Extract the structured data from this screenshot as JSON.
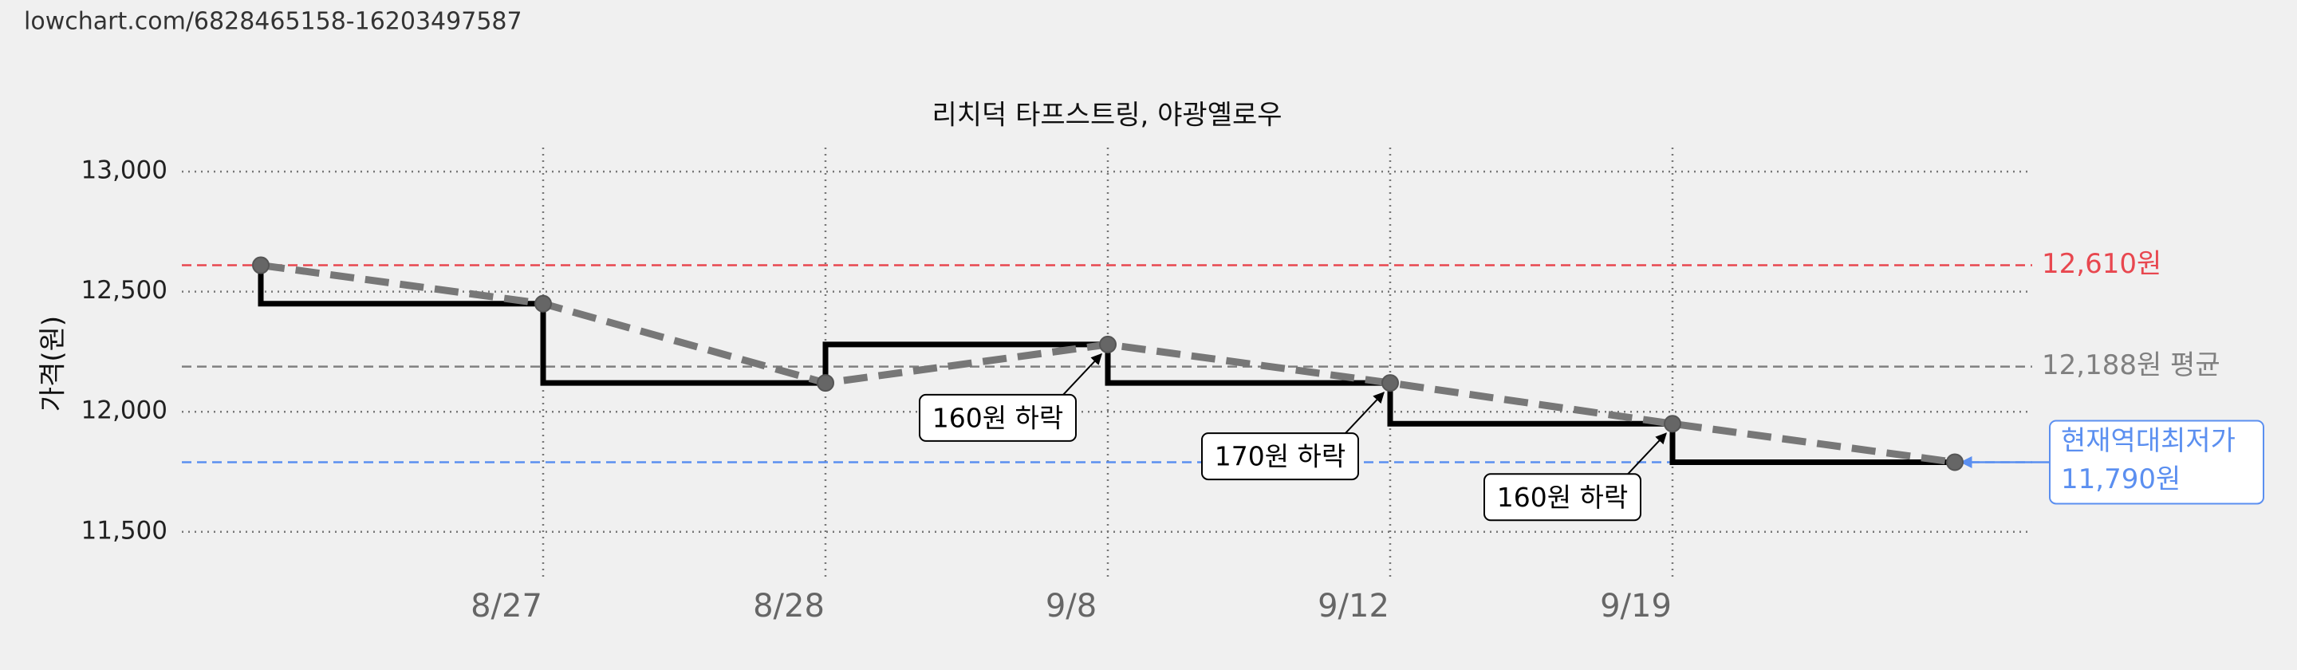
{
  "header": {
    "url": "lowchart.com/6828465158-16203497587"
  },
  "chart_data": {
    "type": "line",
    "title": "리치덕 타프스트링, 야광옐로우",
    "y_label": "가격(원)",
    "categories": [
      null,
      "8/27",
      "8/28",
      "9/8",
      "9/12",
      "9/19",
      null
    ],
    "series": [
      {
        "color": "#777777",
        "step_color": "#000000",
        "values": [
          12610,
          12450,
          12120,
          12280,
          12120,
          11950,
          11790
        ]
      }
    ],
    "ylim": [
      11300,
      13100
    ],
    "yticks": [
      {
        "value": 11500,
        "label": "11,500"
      },
      {
        "value": 12000,
        "label": "12,000"
      },
      {
        "value": 12500,
        "label": "12,500"
      },
      {
        "value": 13000,
        "label": "13,000"
      }
    ],
    "grid": true,
    "reference_lines": [
      {
        "value": 12610,
        "label": [
          "12,610원"
        ],
        "color": "#e8474f"
      },
      {
        "value": 12188,
        "label": [
          "12,188원 평균"
        ],
        "color": "#808080"
      },
      {
        "value": 11790,
        "label": [
          "현재역대최저가",
          "11,790원"
        ],
        "color": "#5b8ff0",
        "boxed": true
      }
    ],
    "annotations": [
      {
        "x": "9/8",
        "text": "160원 하락"
      },
      {
        "x": "9/12",
        "text": "170원 하락"
      },
      {
        "x": "9/19",
        "text": "160원 하락"
      }
    ]
  }
}
